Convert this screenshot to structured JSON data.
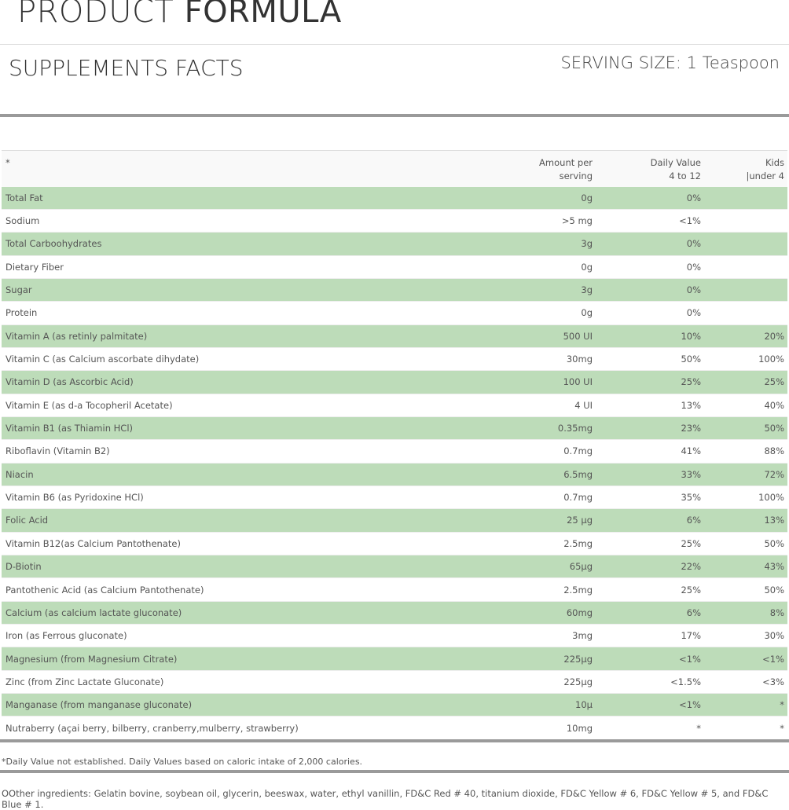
{
  "header": {
    "title_light": "PRODUCT ",
    "title_bold": "FORMULA"
  },
  "facts": {
    "title": "SUPPLEMENTS FACTS",
    "serving_size": "SERVING SIZE: 1 Teaspoon"
  },
  "table": {
    "columns": [
      "*",
      "Amount per serving",
      "Daily Value 4 to 12",
      "Kids |under 4"
    ],
    "column_lines": [
      [
        "*"
      ],
      [
        "Amount per",
        "serving"
      ],
      [
        "Daily Value",
        "4 to 12"
      ],
      [
        "Kids",
        "|under 4"
      ]
    ],
    "row_colors": {
      "odd": "#bddcb9",
      "even": "#ffffff"
    },
    "rows": [
      [
        "Total Fat",
        "0g",
        "0%",
        ""
      ],
      [
        "Sodium",
        ">5 mg",
        "<1%",
        ""
      ],
      [
        "Total Carboohydrates",
        "3g",
        "0%",
        ""
      ],
      [
        "Dietary Fiber",
        "0g",
        "0%",
        ""
      ],
      [
        "Sugar",
        "3g",
        "0%",
        ""
      ],
      [
        "Protein",
        "0g",
        "0%",
        ""
      ],
      [
        "Vitamin A (as retinly palmitate)",
        "500 UI",
        "10%",
        "20%"
      ],
      [
        "Vitamin C (as Calcium ascorbate dihydate)",
        "30mg",
        "50%",
        "100%"
      ],
      [
        "Vitamin D (as Ascorbic Acid)",
        "100 UI",
        "25%",
        "25%"
      ],
      [
        "Vitamin E (as d-a Tocopheril Acetate)",
        "4 UI",
        "13%",
        "40%"
      ],
      [
        "Vitamin B1 (as Thiamin HCl)",
        "0.35mg",
        "23%",
        "50%"
      ],
      [
        "Riboflavin (Vitamin B2)",
        "0.7mg",
        "41%",
        "88%"
      ],
      [
        "Niacin",
        "6.5mg",
        "33%",
        "72%"
      ],
      [
        "Vitamin B6 (as Pyridoxine HCl)",
        "0.7mg",
        "35%",
        "100%"
      ],
      [
        "Folic Acid",
        "25 µg",
        "6%",
        "13%"
      ],
      [
        "Vitamin B12(as Calcium Pantothenate)",
        "2.5mg",
        "25%",
        "50%"
      ],
      [
        "D-Biotin",
        "65µg",
        "22%",
        "43%"
      ],
      [
        "Pantothenic Acid (as Calcium Pantothenate)",
        "2.5mg",
        "25%",
        "50%"
      ],
      [
        "Calcium (as calcium lactate gluconate)",
        "60mg",
        "6%",
        "8%"
      ],
      [
        "Iron (as Ferrous gluconate)",
        "3mg",
        "17%",
        "30%"
      ],
      [
        "Magnesium (from Magnesium Citrate)",
        "225µg",
        "<1%",
        "<1%"
      ],
      [
        "Zinc (from Zinc Lactate Gluconate)",
        "225µg",
        "<1.5%",
        "<3%"
      ],
      [
        "Manganase (from manganase gluconate)",
        "10µ",
        "<1%",
        "*"
      ],
      [
        "Nutraberry (açai berry, bilberry, cranberry,mulberry, strawberry)",
        "10mg",
        "*",
        "*"
      ]
    ]
  },
  "footnote": "*Daily Value not established. Daily Values based on caloric intake of 2,000 calories.",
  "other_ingredients": "OOther ingredients: Gelatin bovine, soybean oil, glycerin, beeswax, water, ethyl vanillin, FD&C Red # 40, titanium dioxide, FD&C Yellow # 6, FD&C Yellow # 5, and FD&C Blue # 1."
}
